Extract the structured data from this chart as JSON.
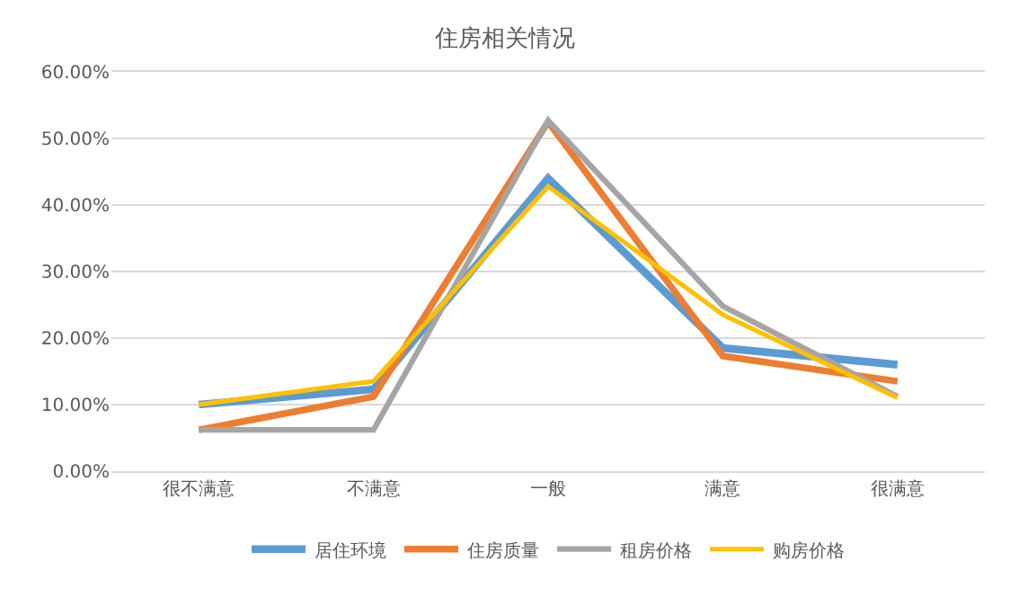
{
  "chart_data": {
    "type": "line",
    "title": "住房相关情况",
    "categories": [
      "很不满意",
      "不满意",
      "一般",
      "满意",
      "很满意"
    ],
    "series": [
      {
        "name": "居住环境",
        "color": "#5b9bd5",
        "values": [
          0.1,
          0.123,
          0.44,
          0.185,
          0.16
        ]
      },
      {
        "name": "住房质量",
        "color": "#ed7d31",
        "values": [
          0.062,
          0.112,
          0.525,
          0.173,
          0.135
        ]
      },
      {
        "name": "租房价格",
        "color": "#a5a5a5",
        "values": [
          0.062,
          0.062,
          0.527,
          0.248,
          0.112
        ]
      },
      {
        "name": "购房价格",
        "color": "#ffc000",
        "values": [
          0.1,
          0.135,
          0.428,
          0.235,
          0.11
        ]
      }
    ],
    "ylim": [
      0,
      0.6
    ],
    "yticks": [
      {
        "value": 0,
        "label": "0.00%"
      },
      {
        "value": 0.1,
        "label": "10.00%"
      },
      {
        "value": 0.2,
        "label": "20.00%"
      },
      {
        "value": 0.3,
        "label": "30.00%"
      },
      {
        "value": 0.4,
        "label": "40.00%"
      },
      {
        "value": 0.5,
        "label": "50.00%"
      },
      {
        "value": 0.6,
        "label": "60.00%"
      }
    ],
    "grid": "y",
    "legend": "bottom",
    "marker": "none",
    "line_style": "solid"
  }
}
